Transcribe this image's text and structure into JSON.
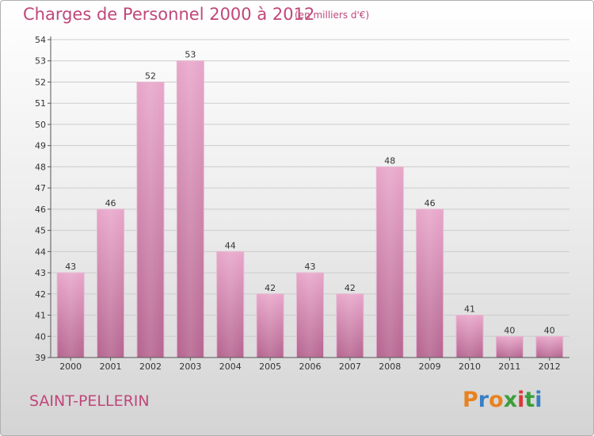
{
  "header": {
    "title": "Charges de Personnel 2000 à 2012",
    "subtitle": "(en milliers d'€)"
  },
  "footer": {
    "commune": "SAINT-PELLERIN",
    "logo_text": "Proxiti",
    "logo_colors": [
      "#e8821e",
      "#3a7fc4",
      "#e8821e",
      "#3a9e3a",
      "#d93a3a",
      "#3a9e3a",
      "#3a7fc4"
    ]
  },
  "colors": {
    "accent": "#c0477a",
    "bar_top": "#e8a6ca",
    "bar_bottom": "#b5648f",
    "grid": "#cccccc",
    "axis": "#555555"
  },
  "chart_data": {
    "type": "bar",
    "categories": [
      "2000",
      "2001",
      "2002",
      "2003",
      "2004",
      "2005",
      "2006",
      "2007",
      "2008",
      "2009",
      "2010",
      "2011",
      "2012"
    ],
    "values": [
      43,
      46,
      52,
      53,
      44,
      42,
      43,
      42,
      48,
      46,
      41,
      40,
      40
    ],
    "ylim": [
      39,
      54
    ],
    "yticks": [
      39,
      40,
      41,
      42,
      43,
      44,
      45,
      46,
      47,
      48,
      49,
      50,
      51,
      52,
      53,
      54
    ],
    "grid": true,
    "data_labels": true
  }
}
